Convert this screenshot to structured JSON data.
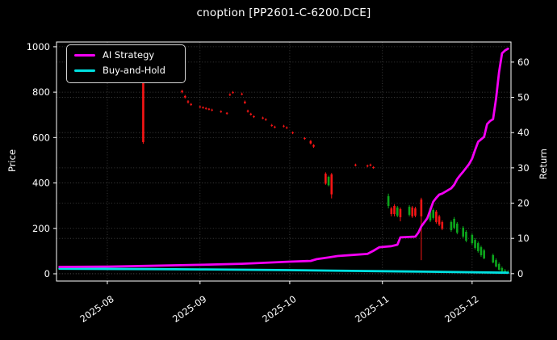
{
  "title": "cnoption [PP2601-C-6200.DCE]",
  "legend": {
    "items": [
      {
        "label": "AI Strategy",
        "color": "#f400f4"
      },
      {
        "label": "Buy-and-Hold",
        "color": "#00e0e0"
      }
    ]
  },
  "axes": {
    "price": {
      "label": "Price",
      "ticks": [
        0,
        200,
        400,
        600,
        800,
        1000
      ],
      "min": -32,
      "max": 1021
    },
    "return": {
      "label": "Return",
      "ticks": [
        0,
        10,
        20,
        30,
        40,
        50,
        60
      ],
      "min": -2.1,
      "max": 65.7
    },
    "x": {
      "start": "2025-07-15",
      "end": "2025-12-14",
      "ticks": [
        {
          "date": "2025-08-01",
          "label": "2025-08"
        },
        {
          "date": "2025-09-01",
          "label": "2025-09"
        },
        {
          "date": "2025-10-01",
          "label": "2025-10"
        },
        {
          "date": "2025-11-01",
          "label": "2025-11"
        },
        {
          "date": "2025-12-01",
          "label": "2025-12"
        }
      ]
    }
  },
  "chart_data": {
    "type": "candlestick+line",
    "title": "cnoption [PP2601-C-6200.DCE]",
    "ylabel_left": "Price",
    "ylabel_right": "Return",
    "xlim": [
      "2025-07-15",
      "2025-12-14"
    ],
    "grid": true,
    "grid_color": "#4a4a4a",
    "background": "#000000",
    "legend_position": "upper left",
    "series": [
      {
        "name": "AI Strategy",
        "type": "line",
        "axis": "return",
        "color": "#f400f4",
        "points": [
          [
            "2025-07-16",
            1.9
          ],
          [
            "2025-08-01",
            2.0
          ],
          [
            "2025-08-15",
            2.2
          ],
          [
            "2025-09-01",
            2.5
          ],
          [
            "2025-09-15",
            2.8
          ],
          [
            "2025-10-01",
            3.4
          ],
          [
            "2025-10-08",
            3.6
          ],
          [
            "2025-10-10",
            4.1
          ],
          [
            "2025-10-14",
            4.6
          ],
          [
            "2025-10-17",
            5.0
          ],
          [
            "2025-10-22",
            5.3
          ],
          [
            "2025-10-27",
            5.6
          ],
          [
            "2025-10-29",
            6.5
          ],
          [
            "2025-10-31",
            7.5
          ],
          [
            "2025-11-04",
            7.8
          ],
          [
            "2025-11-06",
            8.2
          ],
          [
            "2025-11-07",
            10.3
          ],
          [
            "2025-11-12",
            10.5
          ],
          [
            "2025-11-13",
            11.6
          ],
          [
            "2025-11-14",
            13.4
          ],
          [
            "2025-11-16",
            15.7
          ],
          [
            "2025-11-17",
            18.0
          ],
          [
            "2025-11-18",
            20.4
          ],
          [
            "2025-11-19",
            21.5
          ],
          [
            "2025-11-20",
            22.4
          ],
          [
            "2025-11-21",
            22.7
          ],
          [
            "2025-11-24",
            24.2
          ],
          [
            "2025-11-25",
            25.2
          ],
          [
            "2025-11-26",
            26.8
          ],
          [
            "2025-11-27",
            27.9
          ],
          [
            "2025-11-28",
            28.9
          ],
          [
            "2025-11-30",
            31.1
          ],
          [
            "2025-12-01",
            32.6
          ],
          [
            "2025-12-02",
            35.1
          ],
          [
            "2025-12-03",
            37.4
          ],
          [
            "2025-12-04",
            38.1
          ],
          [
            "2025-12-05",
            38.8
          ],
          [
            "2025-12-06",
            42.4
          ],
          [
            "2025-12-07",
            43.3
          ],
          [
            "2025-12-08",
            43.8
          ],
          [
            "2025-12-09",
            49.6
          ],
          [
            "2025-12-10",
            57.1
          ],
          [
            "2025-12-11",
            62.5
          ],
          [
            "2025-12-12",
            63.3
          ],
          [
            "2025-12-13",
            63.8
          ]
        ]
      },
      {
        "name": "Buy-and-Hold",
        "type": "line",
        "axis": "return",
        "color": "#00e0e0",
        "points": [
          [
            "2025-07-16",
            1.4
          ],
          [
            "2025-08-15",
            1.3
          ],
          [
            "2025-09-01",
            1.2
          ],
          [
            "2025-10-01",
            1.0
          ],
          [
            "2025-10-15",
            0.85
          ],
          [
            "2025-11-01",
            0.7
          ],
          [
            "2025-11-15",
            0.55
          ],
          [
            "2025-12-01",
            0.4
          ],
          [
            "2025-12-13",
            0.25
          ]
        ]
      },
      {
        "name": "Price",
        "type": "candlestick",
        "axis": "price",
        "up_color": "#0ca71c",
        "down_color": "#f81515",
        "candles": [
          [
            "2025-08-13",
            855,
            861,
            573,
            580
          ],
          [
            "2025-08-26",
            806,
            810,
            795,
            800
          ],
          [
            "2025-08-27",
            783,
            788,
            772,
            777
          ],
          [
            "2025-08-28",
            760,
            765,
            750,
            755
          ],
          [
            "2025-08-29",
            748,
            752,
            740,
            744
          ],
          [
            "2025-09-01",
            737,
            741,
            730,
            734
          ],
          [
            "2025-09-02",
            734,
            737,
            727,
            730
          ],
          [
            "2025-09-03",
            730,
            734,
            723,
            727
          ],
          [
            "2025-09-04",
            727,
            730,
            720,
            723
          ],
          [
            "2025-09-05",
            723,
            727,
            716,
            720
          ],
          [
            "2025-09-08",
            716,
            720,
            709,
            712
          ],
          [
            "2025-09-10",
            709,
            712,
            701,
            705
          ],
          [
            "2025-09-11",
            790,
            795,
            783,
            787
          ],
          [
            "2025-09-12",
            800,
            805,
            793,
            798
          ],
          [
            "2025-09-15",
            793,
            798,
            786,
            790
          ],
          [
            "2025-09-16",
            758,
            763,
            748,
            752
          ],
          [
            "2025-09-17",
            719,
            723,
            710,
            714
          ],
          [
            "2025-09-18",
            705,
            709,
            697,
            701
          ],
          [
            "2025-09-19",
            694,
            698,
            686,
            690
          ],
          [
            "2025-09-22",
            688,
            692,
            681,
            684
          ],
          [
            "2025-09-23",
            681,
            685,
            674,
            677
          ],
          [
            "2025-09-25",
            655,
            660,
            648,
            652
          ],
          [
            "2025-09-26",
            648,
            652,
            641,
            645
          ],
          [
            "2025-09-29",
            652,
            656,
            645,
            649
          ],
          [
            "2025-09-30",
            645,
            649,
            638,
            642
          ],
          [
            "2025-10-02",
            623,
            627,
            615,
            619
          ],
          [
            "2025-10-06",
            598,
            602,
            590,
            594
          ],
          [
            "2025-10-08",
            585,
            589,
            570,
            574
          ],
          [
            "2025-10-09",
            567,
            571,
            555,
            560
          ],
          [
            "2025-10-13",
            441,
            447,
            392,
            397
          ],
          [
            "2025-10-14",
            390,
            432,
            385,
            427
          ],
          [
            "2025-10-15",
            438,
            444,
            332,
            350
          ],
          [
            "2025-10-23",
            481,
            485,
            473,
            477
          ],
          [
            "2025-10-27",
            477,
            481,
            469,
            473
          ],
          [
            "2025-10-28",
            481,
            485,
            473,
            477
          ],
          [
            "2025-10-29",
            470,
            474,
            462,
            466
          ],
          [
            "2025-11-03",
            299,
            353,
            288,
            342
          ],
          [
            "2025-11-04",
            288,
            295,
            253,
            263
          ],
          [
            "2025-11-05",
            299,
            306,
            253,
            263
          ],
          [
            "2025-11-06",
            256,
            299,
            249,
            292
          ],
          [
            "2025-11-07",
            285,
            292,
            231,
            249
          ],
          [
            "2025-11-10",
            260,
            302,
            253,
            295
          ],
          [
            "2025-11-11",
            292,
            299,
            246,
            253
          ],
          [
            "2025-11-12",
            288,
            295,
            249,
            256
          ],
          [
            "2025-11-14",
            327,
            335,
            60,
            253
          ],
          [
            "2025-11-17",
            235,
            295,
            228,
            288
          ],
          [
            "2025-11-18",
            246,
            288,
            239,
            281
          ],
          [
            "2025-11-19",
            274,
            281,
            221,
            228
          ],
          [
            "2025-11-20",
            253,
            260,
            210,
            217
          ],
          [
            "2025-11-21",
            228,
            235,
            192,
            199
          ],
          [
            "2025-11-24",
            192,
            235,
            185,
            228
          ],
          [
            "2025-11-25",
            203,
            250,
            196,
            242
          ],
          [
            "2025-11-26",
            181,
            228,
            174,
            221
          ],
          [
            "2025-11-28",
            164,
            210,
            157,
            203
          ],
          [
            "2025-11-29",
            146,
            192,
            139,
            185
          ],
          [
            "2025-12-01",
            135,
            178,
            128,
            171
          ],
          [
            "2025-12-02",
            114,
            157,
            107,
            149
          ],
          [
            "2025-12-03",
            100,
            142,
            93,
            135
          ],
          [
            "2025-12-04",
            82,
            124,
            75,
            117
          ],
          [
            "2025-12-05",
            68,
            110,
            64,
            103
          ],
          [
            "2025-12-08",
            50,
            89,
            46,
            82
          ],
          [
            "2025-12-09",
            32,
            68,
            28,
            60
          ],
          [
            "2025-12-10",
            18,
            50,
            14,
            43
          ],
          [
            "2025-12-11",
            10,
            32,
            7,
            25
          ],
          [
            "2025-12-12",
            4,
            21,
            2,
            14
          ],
          [
            "2025-12-13",
            2,
            16,
            1,
            9
          ]
        ]
      }
    ]
  }
}
